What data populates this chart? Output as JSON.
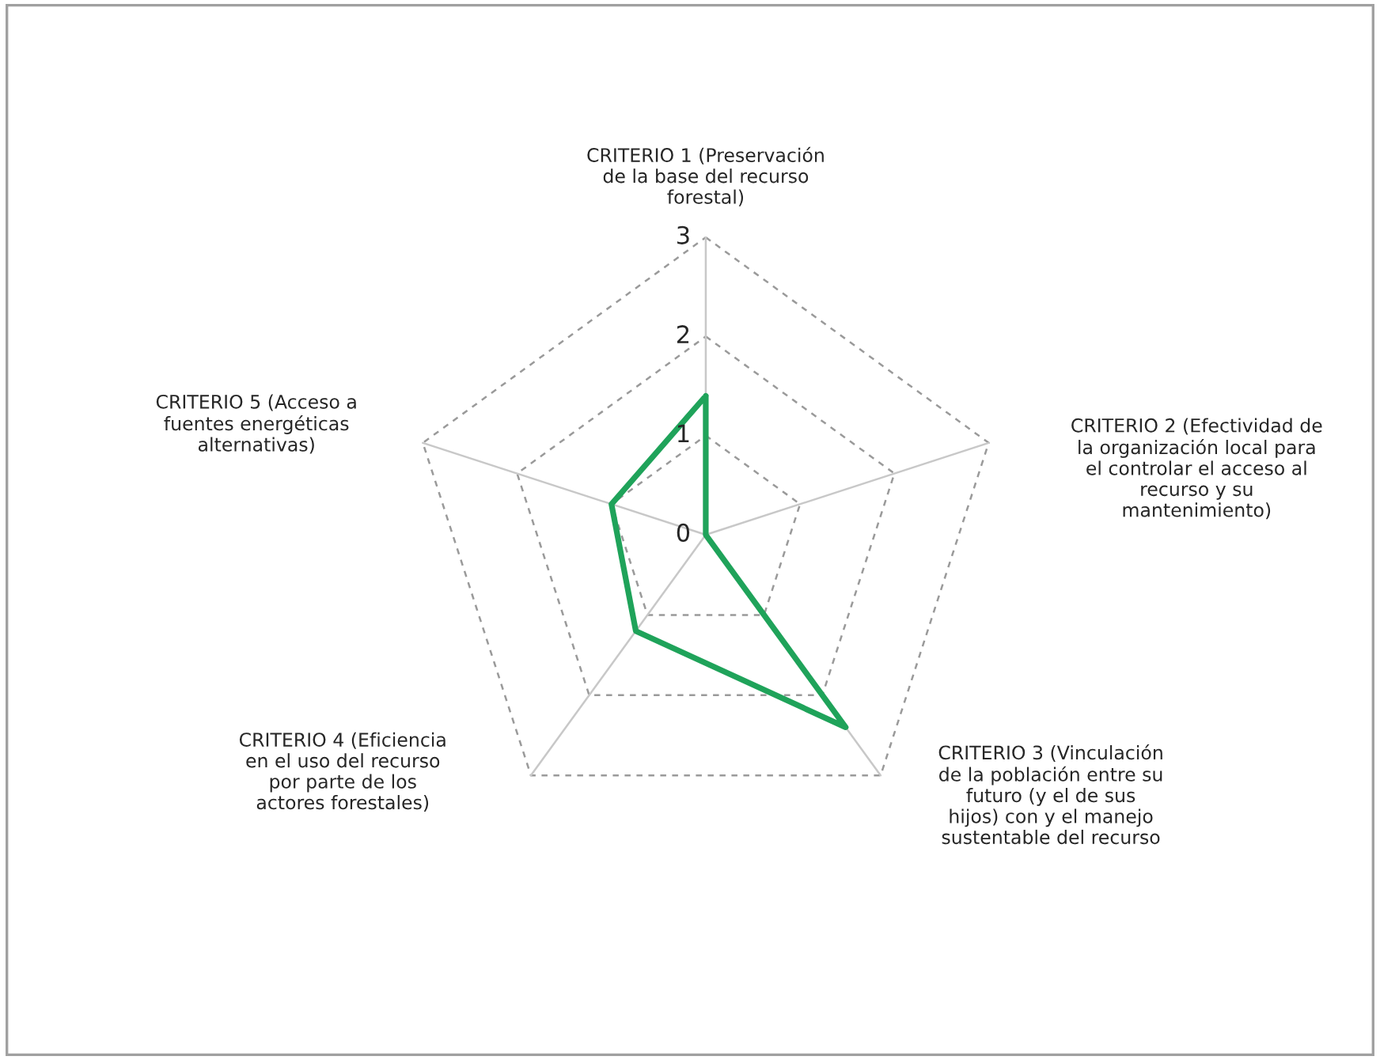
{
  "chart_data": {
    "type": "radar",
    "categories": [
      "CRITERIO 1 (Preservación de la base del recurso forestal)",
      "CRITERIO 2 (Efectividad de la organización local para el controlar el acceso al recurso y su mantenimiento)",
      "CRITERIO 3 (Vinculación de la población entre su futuro (y el de sus hijos) con y el manejo sustentable del recurso",
      "CRITERIO 4 (Eficiencia en el uso del recurso por parte de los actores forestales)",
      "CRITERIO 5 (Acceso a fuentes energéticas alternativas)"
    ],
    "series": [
      {
        "color": "#1fa35a",
        "values": [
          1.4,
          0,
          2.4,
          1.2,
          1.0
        ]
      }
    ],
    "ylim": [
      0,
      3
    ],
    "yticks": [
      0,
      1,
      2,
      3
    ],
    "grid": true,
    "marker": "none",
    "line_style": "solid"
  }
}
